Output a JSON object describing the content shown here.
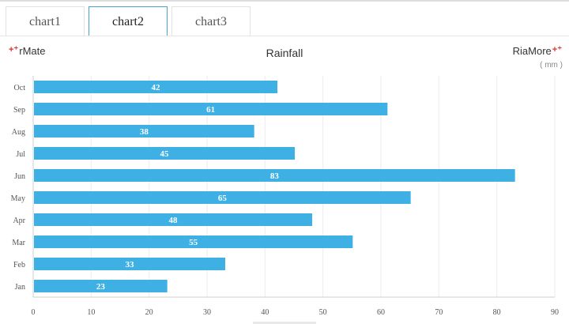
{
  "tabs": [
    {
      "label": "chart1",
      "active": false
    },
    {
      "label": "chart2",
      "active": true
    },
    {
      "label": "chart3",
      "active": false
    }
  ],
  "brand": {
    "left": "rMate",
    "right": "RiaMore"
  },
  "colors": {
    "bar": "#3eb0e3",
    "active_tab": "#4aa3c8",
    "grid": "#ececec"
  },
  "chart_data": {
    "type": "bar",
    "orientation": "horizontal",
    "title": "Rainfall",
    "unit_label": "( mm )",
    "categories": [
      "Jan",
      "Feb",
      "Mar",
      "Apr",
      "May",
      "Jun",
      "Jul",
      "Aug",
      "Sep",
      "Oct"
    ],
    "values": [
      23,
      33,
      55,
      48,
      65,
      83,
      45,
      38,
      61,
      42
    ],
    "xlim": [
      0,
      90
    ],
    "x_ticks": [
      0,
      10,
      20,
      30,
      40,
      50,
      60,
      70,
      80,
      90
    ],
    "grid": true,
    "data_labels": true
  }
}
